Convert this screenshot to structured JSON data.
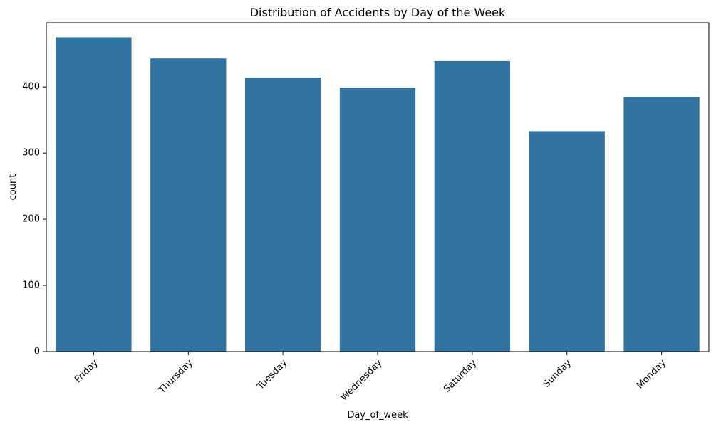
{
  "chart_data": {
    "type": "bar",
    "title": "Distribution of Accidents by Day of the Week",
    "xlabel": "Day_of_week",
    "ylabel": "count",
    "categories": [
      "Friday",
      "Thursday",
      "Tuesday",
      "Wednesday",
      "Saturday",
      "Sunday",
      "Monday"
    ],
    "values": [
      475,
      443,
      414,
      399,
      439,
      333,
      385
    ],
    "ylim": [
      0,
      497
    ],
    "yticks": [
      0,
      100,
      200,
      300,
      400
    ],
    "ytick_labels": [
      "0",
      "100",
      "200",
      "300",
      "400"
    ],
    "bar_color": "#3274a1",
    "grid": false,
    "legend": "none"
  }
}
